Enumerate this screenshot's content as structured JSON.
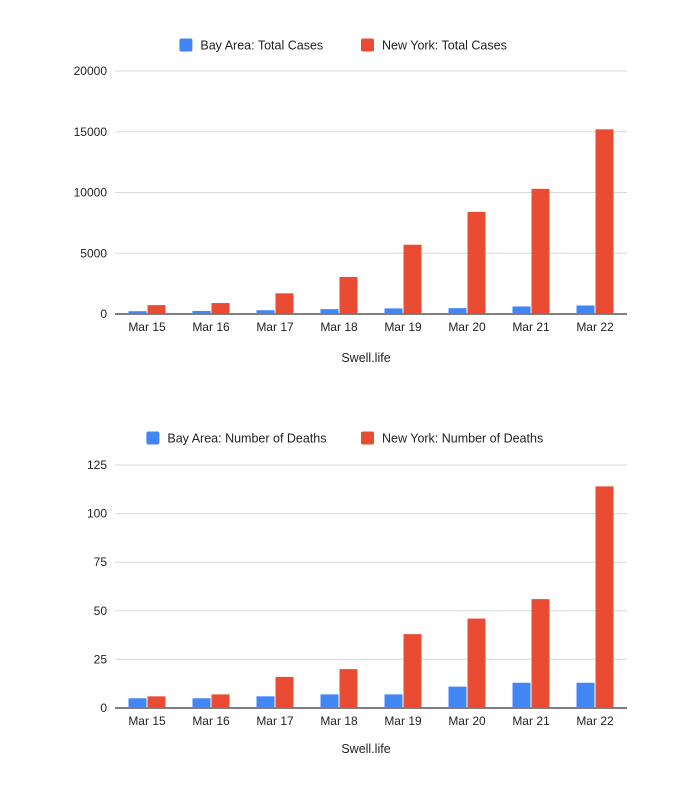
{
  "chart_data": [
    {
      "type": "bar",
      "categories": [
        "Mar 15",
        "Mar 16",
        "Mar 17",
        "Mar 18",
        "Mar 19",
        "Mar 20",
        "Mar 21",
        "Mar 22"
      ],
      "series": [
        {
          "name": "Bay Area: Total Cases",
          "color": "#4285f4",
          "values": [
            230,
            250,
            310,
            400,
            460,
            480,
            620,
            700
          ]
        },
        {
          "name": "New York: Total Cases",
          "color": "#ea4c33",
          "values": [
            730,
            900,
            1700,
            3050,
            5700,
            8400,
            10300,
            15200
          ]
        }
      ],
      "title": "",
      "xlabel": "Swell.life",
      "ylabel": "",
      "ylim": [
        0,
        20000
      ],
      "yticks": [
        "0",
        "5000",
        "10000",
        "15000",
        "20000"
      ],
      "grid": true,
      "legend": "top"
    },
    {
      "type": "bar",
      "categories": [
        "Mar 15",
        "Mar 16",
        "Mar 17",
        "Mar 18",
        "Mar 19",
        "Mar 20",
        "Mar 21",
        "Mar 22"
      ],
      "series": [
        {
          "name": "Bay Area: Number of Deaths",
          "color": "#4285f4",
          "values": [
            5,
            5,
            6,
            7,
            7,
            11,
            13,
            13
          ]
        },
        {
          "name": "New York: Number of Deaths",
          "color": "#ea4c33",
          "values": [
            6,
            7,
            16,
            20,
            38,
            46,
            56,
            114
          ]
        }
      ],
      "title": "",
      "xlabel": "Swell.life",
      "ylabel": "",
      "ylim": [
        0,
        125
      ],
      "yticks": [
        "0",
        "25",
        "50",
        "75",
        "100",
        "125"
      ],
      "grid": true,
      "legend": "top"
    }
  ]
}
